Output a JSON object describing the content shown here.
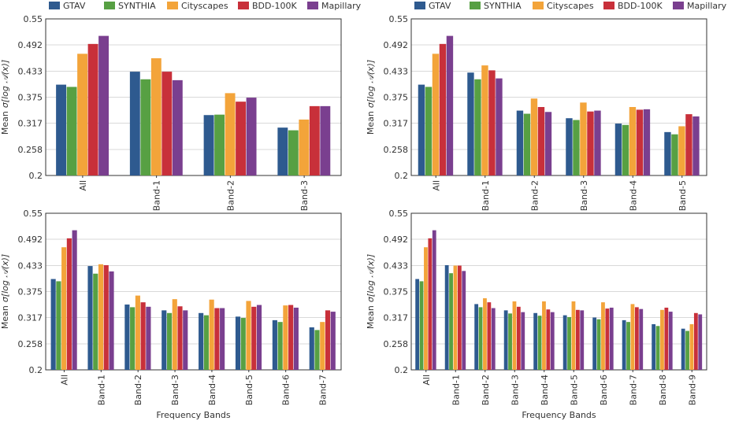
{
  "colors": {
    "GTAV": "#2e5a8f",
    "SYNTHIA": "#57a043",
    "Cityscapes": "#f3a43a",
    "BDD-100K": "#c8303a",
    "Mapillary": "#7a3f8f"
  },
  "chart_data": [
    {
      "type": "bar",
      "title": "",
      "xlabel": "",
      "ylabel_prefix": "Mean",
      "ylabel_symbol": "σ[log 𝒜(x)]",
      "ylim": [
        0.2,
        0.55
      ],
      "yticks": [
        "0.2",
        "0.258",
        "0.317",
        "0.375",
        "0.433",
        "0.492",
        "0.55"
      ],
      "legend": [
        "GTAV",
        "SYNTHIA",
        "Cityscapes",
        "BDD-100K",
        "Mapillary"
      ],
      "categories": [
        "All",
        "Band-1",
        "Band-2",
        "Band-3"
      ],
      "series": [
        {
          "name": "GTAV",
          "values": [
            0.403,
            0.432,
            0.335,
            0.307
          ]
        },
        {
          "name": "SYNTHIA",
          "values": [
            0.398,
            0.415,
            0.336,
            0.301
          ]
        },
        {
          "name": "Cityscapes",
          "values": [
            0.472,
            0.462,
            0.384,
            0.325
          ]
        },
        {
          "name": "BDD-100K",
          "values": [
            0.494,
            0.432,
            0.365,
            0.355
          ]
        },
        {
          "name": "Mapillary",
          "values": [
            0.512,
            0.413,
            0.374,
            0.355
          ]
        }
      ]
    },
    {
      "type": "bar",
      "title": "",
      "xlabel": "",
      "ylabel_prefix": "Mean",
      "ylabel_symbol": "σ[log 𝒜(x)]",
      "ylim": [
        0.2,
        0.55
      ],
      "yticks": [
        "0.2",
        "0.258",
        "0.317",
        "0.375",
        "0.433",
        "0.492",
        "0.55"
      ],
      "legend": [
        "GTAV",
        "SYNTHIA",
        "Cityscapes",
        "BDD-100K",
        "Mapillary"
      ],
      "categories": [
        "All",
        "Band-1",
        "Band-2",
        "Band-3",
        "Band-4",
        "Band-5"
      ],
      "series": [
        {
          "name": "GTAV",
          "values": [
            0.403,
            0.43,
            0.345,
            0.328,
            0.316,
            0.297
          ]
        },
        {
          "name": "SYNTHIA",
          "values": [
            0.398,
            0.415,
            0.338,
            0.324,
            0.313,
            0.292
          ]
        },
        {
          "name": "Cityscapes",
          "values": [
            0.472,
            0.446,
            0.372,
            0.363,
            0.353,
            0.31
          ]
        },
        {
          "name": "BDD-100K",
          "values": [
            0.494,
            0.435,
            0.353,
            0.343,
            0.347,
            0.337
          ]
        },
        {
          "name": "Mapillary",
          "values": [
            0.512,
            0.417,
            0.342,
            0.345,
            0.348,
            0.332
          ]
        }
      ]
    },
    {
      "type": "bar",
      "title": "",
      "xlabel": "Frequency Bands",
      "ylabel_prefix": "Mean",
      "ylabel_symbol": "σ[log 𝒜(x)]",
      "ylim": [
        0.2,
        0.55
      ],
      "yticks": [
        "0.2",
        "0.258",
        "0.317",
        "0.375",
        "0.433",
        "0.492",
        "0.55"
      ],
      "legend": [],
      "categories": [
        "All",
        "Band-1",
        "Band-2",
        "Band-3",
        "Band-4",
        "Band-5",
        "Band-6",
        "Band-7"
      ],
      "series": [
        {
          "name": "GTAV",
          "values": [
            0.403,
            0.432,
            0.346,
            0.333,
            0.327,
            0.319,
            0.311,
            0.295
          ]
        },
        {
          "name": "SYNTHIA",
          "values": [
            0.398,
            0.415,
            0.34,
            0.327,
            0.322,
            0.316,
            0.307,
            0.289
          ]
        },
        {
          "name": "Cityscapes",
          "values": [
            0.474,
            0.436,
            0.366,
            0.358,
            0.357,
            0.354,
            0.344,
            0.307
          ]
        },
        {
          "name": "BDD-100K",
          "values": [
            0.494,
            0.434,
            0.351,
            0.342,
            0.338,
            0.341,
            0.345,
            0.333
          ]
        },
        {
          "name": "Mapillary",
          "values": [
            0.512,
            0.42,
            0.341,
            0.333,
            0.338,
            0.345,
            0.339,
            0.33
          ]
        }
      ]
    },
    {
      "type": "bar",
      "title": "",
      "xlabel": "Frequency Bands",
      "ylabel_prefix": "Mean",
      "ylabel_symbol": "σ[log 𝒜(x)]",
      "ylim": [
        0.2,
        0.55
      ],
      "yticks": [
        "0.2",
        "0.258",
        "0.317",
        "0.375",
        "0.433",
        "0.492",
        "0.55"
      ],
      "legend": [],
      "categories": [
        "All",
        "Band-1",
        "Band-2",
        "Band-3",
        "Band-4",
        "Band-5",
        "Band-6",
        "Band-7",
        "Band-8",
        "Band-9"
      ],
      "series": [
        {
          "name": "GTAV",
          "values": [
            0.403,
            0.434,
            0.347,
            0.333,
            0.327,
            0.322,
            0.317,
            0.311,
            0.302,
            0.292
          ]
        },
        {
          "name": "SYNTHIA",
          "values": [
            0.398,
            0.416,
            0.34,
            0.326,
            0.321,
            0.318,
            0.313,
            0.307,
            0.298,
            0.287
          ]
        },
        {
          "name": "Cityscapes",
          "values": [
            0.474,
            0.433,
            0.36,
            0.353,
            0.353,
            0.353,
            0.351,
            0.347,
            0.334,
            0.302
          ]
        },
        {
          "name": "BDD-100K",
          "values": [
            0.494,
            0.433,
            0.351,
            0.341,
            0.335,
            0.334,
            0.337,
            0.34,
            0.339,
            0.327
          ]
        },
        {
          "name": "Mapillary",
          "values": [
            0.512,
            0.421,
            0.338,
            0.329,
            0.329,
            0.333,
            0.339,
            0.336,
            0.33,
            0.324
          ]
        }
      ]
    }
  ]
}
